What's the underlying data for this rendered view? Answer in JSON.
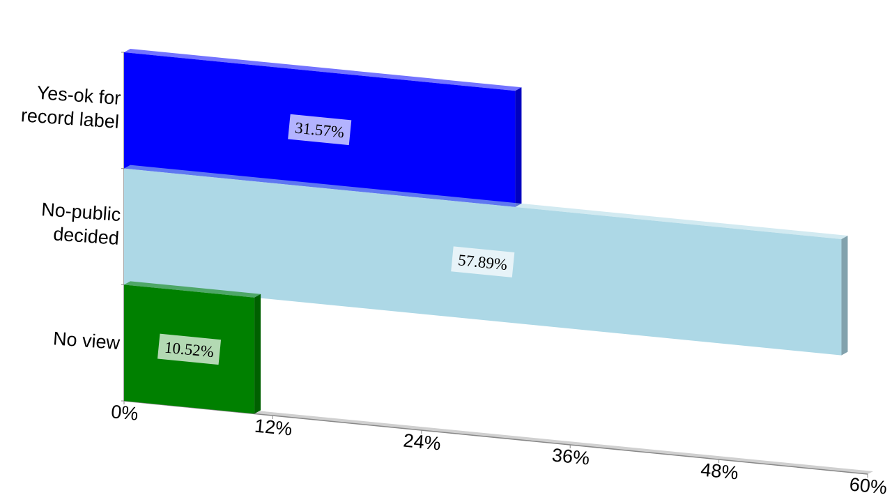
{
  "chart_data": {
    "type": "bar",
    "orientation": "horizontal",
    "categories": [
      "Yes-ok for record label",
      "No-public decided",
      "No view"
    ],
    "values": [
      31.57,
      57.89,
      10.52
    ],
    "value_labels": [
      "31.57%",
      "57.89%",
      "10.52%"
    ],
    "colors": [
      "#0000ff",
      "#add8e6",
      "#008000"
    ],
    "xlim": [
      0,
      60
    ],
    "xticks": [
      {
        "value": 0,
        "label": "0%"
      },
      {
        "value": 12,
        "label": "12%"
      },
      {
        "value": 24,
        "label": "24%"
      },
      {
        "value": 36,
        "label": "36%"
      },
      {
        "value": 48,
        "label": "48%"
      },
      {
        "value": 60,
        "label": "60%"
      }
    ]
  }
}
